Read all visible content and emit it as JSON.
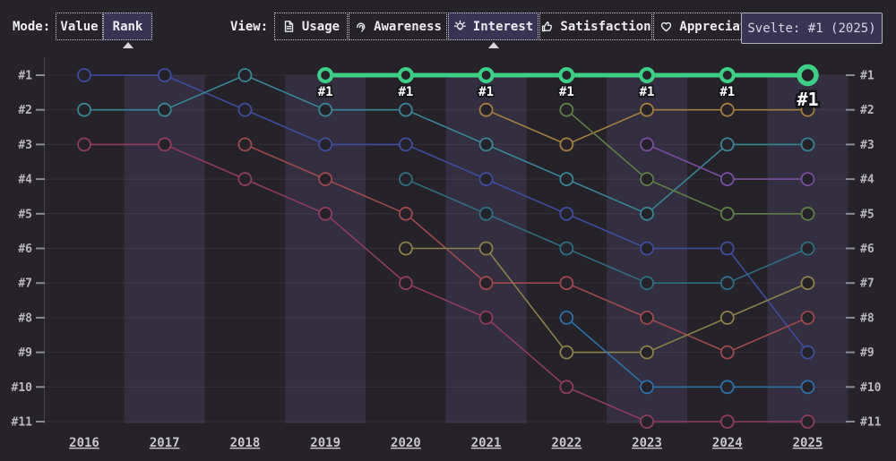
{
  "toolbar": {
    "mode_label": "Mode:",
    "view_label": "View:",
    "mode_options": [
      {
        "id": "value",
        "label": "Value",
        "selected": false
      },
      {
        "id": "rank",
        "label": "Rank",
        "selected": true
      }
    ],
    "view_options": [
      {
        "id": "usage",
        "label": "Usage",
        "icon": "document-icon",
        "selected": false
      },
      {
        "id": "awareness",
        "label": "Awareness",
        "icon": "ear-icon",
        "selected": false
      },
      {
        "id": "interest",
        "label": "Interest",
        "icon": "lightbulb-icon",
        "selected": true
      },
      {
        "id": "satisfaction",
        "label": "Satisfaction",
        "icon": "thumbs-up-icon",
        "selected": false
      },
      {
        "id": "appreciation",
        "label": "Appreciation",
        "icon": "heart-icon",
        "selected": false
      }
    ]
  },
  "tooltip": {
    "text": "Svelte: #1 (2025)"
  },
  "colors": {
    "background": "#252229",
    "stripe": "#332e40",
    "selected_button": "#3a3454",
    "accent_green": "#3ecf87",
    "axis_text": "#bab7c3"
  },
  "chart_data": {
    "type": "line",
    "subtype": "bump-rank",
    "x": [
      "2016",
      "2017",
      "2018",
      "2019",
      "2020",
      "2021",
      "2022",
      "2023",
      "2024",
      "2025"
    ],
    "y_axis_labels": [
      "#1",
      "#2",
      "#3",
      "#4",
      "#5",
      "#6",
      "#7",
      "#8",
      "#9",
      "#10",
      "#11"
    ],
    "ylim": [
      1,
      11
    ],
    "grid": true,
    "striped_columns": [
      "2017",
      "2019",
      "2021",
      "2023",
      "2025"
    ],
    "highlighted_series": "svelte",
    "series": [
      {
        "id": "blue",
        "label": null,
        "color": "#3e4d9e",
        "highlight": false,
        "ranks": [
          1,
          1,
          2,
          3,
          3,
          4,
          5,
          6,
          6,
          9
        ]
      },
      {
        "id": "teal",
        "label": null,
        "color": "#3a8593",
        "highlight": false,
        "ranks": [
          2,
          2,
          1,
          2,
          2,
          3,
          4,
          5,
          3,
          3
        ]
      },
      {
        "id": "crimson",
        "label": null,
        "color": "#8e3c5f",
        "highlight": false,
        "ranks": [
          3,
          3,
          4,
          5,
          7,
          8,
          10,
          11,
          11,
          11
        ]
      },
      {
        "id": "red",
        "label": null,
        "color": "#9d4a4e",
        "highlight": false,
        "ranks": [
          null,
          null,
          3,
          4,
          5,
          7,
          7,
          8,
          9,
          8
        ]
      },
      {
        "id": "dark-teal",
        "label": null,
        "color": "#2f6f80",
        "highlight": false,
        "ranks": [
          null,
          null,
          null,
          null,
          4,
          5,
          6,
          7,
          7,
          6
        ]
      },
      {
        "id": "olive",
        "label": null,
        "color": "#8a8049",
        "highlight": false,
        "ranks": [
          null,
          null,
          null,
          null,
          6,
          6,
          9,
          9,
          8,
          7
        ]
      },
      {
        "id": "tan",
        "label": null,
        "color": "#a37e41",
        "highlight": false,
        "ranks": [
          null,
          null,
          null,
          null,
          null,
          2,
          3,
          2,
          2,
          2
        ]
      },
      {
        "id": "olive-green",
        "label": null,
        "color": "#5f7d46",
        "highlight": false,
        "ranks": [
          null,
          null,
          null,
          null,
          null,
          null,
          2,
          4,
          5,
          5
        ]
      },
      {
        "id": "steel-blue",
        "label": null,
        "color": "#2f6fa7",
        "highlight": false,
        "ranks": [
          null,
          null,
          null,
          null,
          null,
          null,
          8,
          10,
          10,
          10
        ]
      },
      {
        "id": "purple",
        "label": null,
        "color": "#7a4da1",
        "highlight": false,
        "ranks": [
          null,
          null,
          null,
          null,
          null,
          null,
          null,
          3,
          4,
          4
        ]
      },
      {
        "id": "svelte",
        "label": "Svelte",
        "color": "#3ecf87",
        "highlight": true,
        "point_label": "#1",
        "ranks": [
          null,
          null,
          null,
          1,
          1,
          1,
          1,
          1,
          1,
          1
        ]
      }
    ]
  }
}
